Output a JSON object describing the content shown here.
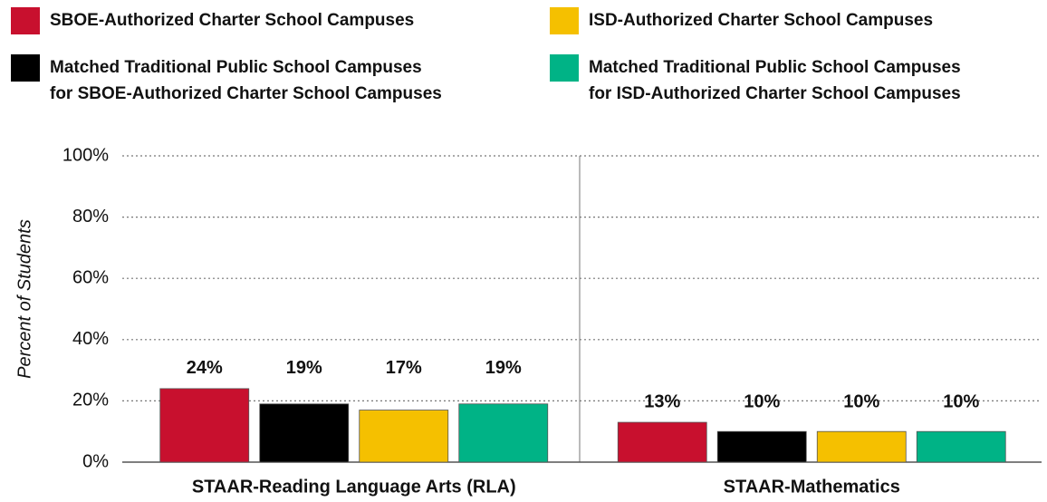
{
  "chart_data": {
    "type": "bar",
    "categories": [
      "STAAR-Reading Language Arts (RLA)",
      "STAAR-Mathematics"
    ],
    "y_label": "Percent of Students",
    "ylim": [
      0,
      100
    ],
    "yticks": [
      {
        "value": 0,
        "label": "0%"
      },
      {
        "value": 20,
        "label": "20%"
      },
      {
        "value": 40,
        "label": "40%"
      },
      {
        "value": 60,
        "label": "60%"
      },
      {
        "value": 80,
        "label": "80%"
      },
      {
        "value": 100,
        "label": "100%"
      }
    ],
    "grid": true,
    "legend": "top",
    "series": [
      {
        "name": "SBOE-Authorized Charter School Campuses",
        "color": "#c8102e",
        "values": [
          24,
          13
        ],
        "value_labels": [
          "24%",
          "13%"
        ]
      },
      {
        "name": "Matched Traditional Public School Campuses for SBOE-Authorized Charter School Campuses",
        "color": "#000000",
        "values": [
          19,
          10
        ],
        "value_labels": [
          "19%",
          "10%"
        ]
      },
      {
        "name": "ISD-Authorized Charter School Campuses",
        "color": "#f5c000",
        "values": [
          17,
          10
        ],
        "value_labels": [
          "17%",
          "10%"
        ]
      },
      {
        "name": "Matched Traditional Public School Campuses for ISD-Authorized Charter School Campuses",
        "color": "#00b386",
        "values": [
          19,
          10
        ],
        "value_labels": [
          "19%",
          "10%"
        ]
      }
    ]
  }
}
